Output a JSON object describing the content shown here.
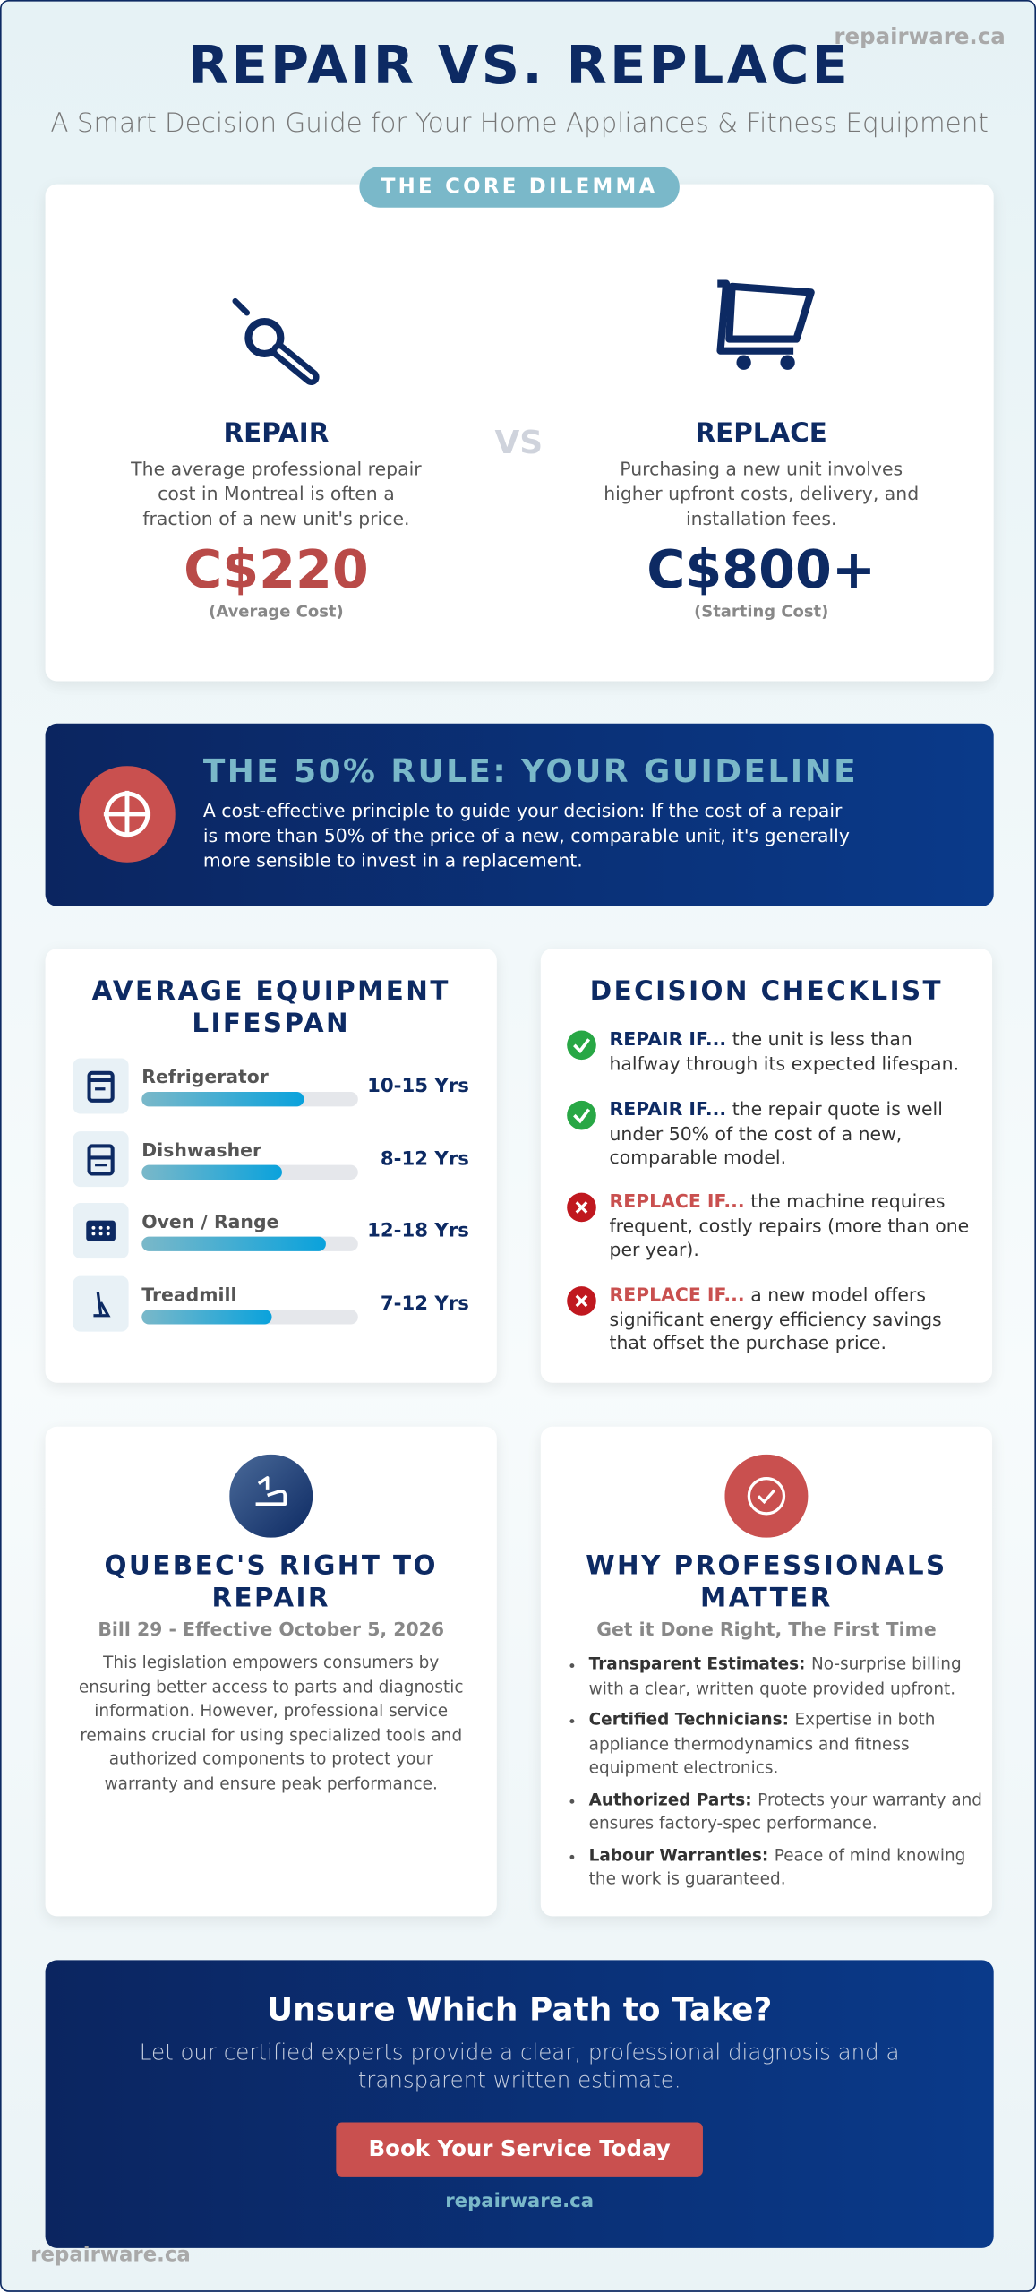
{
  "header": {
    "watermark": "repairware.ca",
    "title": "REPAIR VS. REPLACE",
    "subtitle": "A Smart Decision Guide for Your Home Appliances & Fitness Equipment"
  },
  "dilemma": {
    "badge": "THE CORE DILEMMA",
    "vs": "VS",
    "repair": {
      "title": "REPAIR",
      "text": "The average professional repair cost in Montreal is often a fraction of a new unit's price.",
      "price": "C$220",
      "note": "(Average Cost)"
    },
    "replace": {
      "title": "REPLACE",
      "text": "Purchasing a new unit involves higher upfront costs, delivery, and installation fees.",
      "price": "C$800+",
      "note": "(Starting Cost)"
    }
  },
  "rule": {
    "title": "THE 50% RULE: YOUR GUIDELINE",
    "text": "A cost-effective principle to guide your decision: If the cost of a repair is more than 50% of the price of a new, comparable unit, it's generally more sensible to invest in a replacement."
  },
  "lifespan": {
    "title": "AVERAGE EQUIPMENT LIFESPAN",
    "items": [
      {
        "name": "Refrigerator",
        "years": "10-15 Yrs"
      },
      {
        "name": "Dishwasher",
        "years": "8-12 Yrs"
      },
      {
        "name": "Oven / Range",
        "years": "12-18 Yrs"
      },
      {
        "name": "Treadmill",
        "years": "7-12 Yrs"
      }
    ]
  },
  "checklist": {
    "title": "DECISION CHECKLIST",
    "items": [
      {
        "lead": "REPAIR IF...",
        "text": "the unit is less than halfway through its expected lifespan."
      },
      {
        "lead": "REPAIR IF...",
        "text": "the repair quote is well under 50% of the cost of a new, comparable model."
      },
      {
        "lead": "REPLACE IF...",
        "text": "the machine requires frequent, costly repairs (more than one per year)."
      },
      {
        "lead": "REPLACE IF...",
        "text": "a new model offers significant energy efficiency savings that offset the purchase price."
      }
    ]
  },
  "quebec": {
    "title": "QUEBEC'S RIGHT TO REPAIR",
    "subtitle": "Bill 29 - Effective October 5, 2026",
    "text": "This legislation empowers consumers by ensuring better access to parts and diagnostic information. However, professional service remains crucial for using specialized tools and authorized components to protect your warranty and ensure peak performance."
  },
  "pros": {
    "title": "WHY PROFESSIONALS MATTER",
    "subtitle": "Get it Done Right, The First Time",
    "items": [
      {
        "lead": "Transparent Estimates:",
        "text": "No-surprise billing with a clear, written quote provided upfront."
      },
      {
        "lead": "Certified Technicians:",
        "text": "Expertise in both appliance thermodynamics and fitness equipment electronics."
      },
      {
        "lead": "Authorized Parts:",
        "text": "Protects your warranty and ensures factory-spec performance."
      },
      {
        "lead": "Labour Warranties:",
        "text": "Peace of mind knowing the work is guaranteed."
      }
    ]
  },
  "cta": {
    "title": "Unsure Which Path to Take?",
    "text": "Let our certified experts provide a clear, professional diagnosis and a transparent written estimate.",
    "button": "Book Your Service Today",
    "link": "repairware.ca"
  },
  "footer": {
    "watermark": "repairware.ca"
  }
}
